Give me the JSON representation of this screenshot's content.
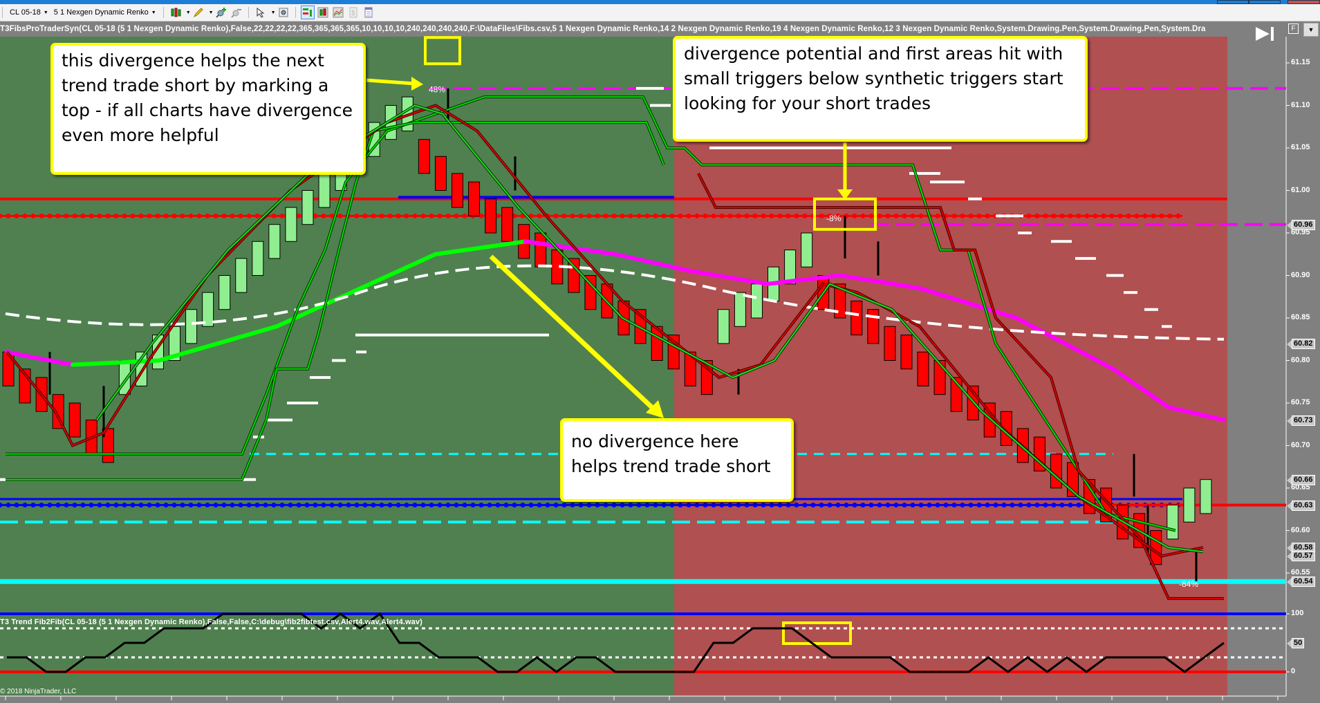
{
  "window": {
    "title_bar_color": "#1c7ed6"
  },
  "toolbar": {
    "instrument": "CL 05-18",
    "bar_type": "5 1 Nexgen Dynamic Renko",
    "icons": [
      "chart-style-icon",
      "drawing-tool-icon",
      "zoom-in-icon",
      "zoom-out-icon",
      "pointer-icon",
      "data-box-icon",
      "strategies-icon",
      "indicators-icon",
      "chart-trader-icon",
      "price-icon",
      "properties-icon"
    ]
  },
  "chart": {
    "colors": {
      "bull_bg": "#508050",
      "bear_bg": "#b05050",
      "empty_bg": "#808080",
      "callout_border": "#ffff00"
    },
    "main_indicator_label": "T3FibsProTraderSyn(CL 05-18 (5 1 Nexgen Dynamic Renko),False,22,22,22,22,365,365,365,365,10,10,10,10,240,240,240,240,F:\\DataFiles\\Fibs.csv,5 1 Nexgen Dynamic Renko,14 2 Nexgen Dynamic Renko,19 4 Nexgen Dynamic Renko,12 3 Nexgen Dynamic Renko,System.Drawing.Pen,System.Drawing.Pen,System.Dra",
    "lower_indicator_label": "T3 Trend Fib2Fib(CL 05-18 (5 1 Nexgen Dynamic Renko),False,False,C:\\debug\\fib2fibtest.csv,Alert4.wav,Alert4.wav)",
    "copyright": "© 2018 NinjaTrader, LLC",
    "f_button": "F",
    "price_axis": {
      "ticks": [
        "61.15",
        "61.10",
        "61.05",
        "61.00",
        "60.95",
        "60.90",
        "60.85",
        "60.80",
        "60.75",
        "60.70",
        "60.65",
        "60.60",
        "60.55"
      ],
      "tags": [
        "60.96",
        "60.82",
        "60.73",
        "60.66",
        "60.63",
        "60.58",
        "60.57",
        "60.54"
      ]
    },
    "lower_axis": {
      "ticks": [
        "100",
        "0"
      ],
      "tags": [
        "50"
      ]
    },
    "percent_labels": [
      "48%",
      "-8%",
      "-84%"
    ],
    "callouts": [
      {
        "text": "this divergence helps the next trend trade short by marking a top - if all charts have divergence even more helpful"
      },
      {
        "text": "divergence potential and first areas hit with small triggers below synthetic triggers start looking for your short trades"
      },
      {
        "text": "no divergence here helps trend trade short"
      }
    ]
  },
  "chart_data": {
    "type": "table",
    "title": "CL 05-18 5 1 Nexgen Dynamic Renko",
    "price_range": [
      60.52,
      61.17
    ],
    "renko_bars": [
      {
        "o": 60.81,
        "c": 60.77,
        "dir": "down"
      },
      {
        "o": 60.79,
        "c": 60.75,
        "dir": "down"
      },
      {
        "o": 60.78,
        "c": 60.74,
        "dir": "down"
      },
      {
        "o": 60.76,
        "c": 60.72,
        "dir": "down"
      },
      {
        "o": 60.75,
        "c": 60.71,
        "dir": "down"
      },
      {
        "o": 60.73,
        "c": 60.69,
        "dir": "down"
      },
      {
        "o": 60.72,
        "c": 60.68,
        "dir": "down"
      },
      {
        "o": 60.76,
        "c": 60.8,
        "dir": "up"
      },
      {
        "o": 60.77,
        "c": 60.81,
        "dir": "up"
      },
      {
        "o": 60.79,
        "c": 60.83,
        "dir": "up"
      },
      {
        "o": 60.8,
        "c": 60.84,
        "dir": "up"
      },
      {
        "o": 60.82,
        "c": 60.86,
        "dir": "up"
      },
      {
        "o": 60.84,
        "c": 60.88,
        "dir": "up"
      },
      {
        "o": 60.86,
        "c": 60.9,
        "dir": "up"
      },
      {
        "o": 60.88,
        "c": 60.92,
        "dir": "up"
      },
      {
        "o": 60.9,
        "c": 60.94,
        "dir": "up"
      },
      {
        "o": 60.92,
        "c": 60.96,
        "dir": "up"
      },
      {
        "o": 60.94,
        "c": 60.98,
        "dir": "up"
      },
      {
        "o": 60.96,
        "c": 61.0,
        "dir": "up"
      },
      {
        "o": 60.98,
        "c": 61.02,
        "dir": "up"
      },
      {
        "o": 61.0,
        "c": 61.04,
        "dir": "up"
      },
      {
        "o": 61.02,
        "c": 61.06,
        "dir": "up"
      },
      {
        "o": 61.04,
        "c": 61.08,
        "dir": "up"
      },
      {
        "o": 61.06,
        "c": 61.1,
        "dir": "up"
      },
      {
        "o": 61.07,
        "c": 61.11,
        "dir": "up"
      },
      {
        "o": 61.06,
        "c": 61.02,
        "dir": "down"
      },
      {
        "o": 61.04,
        "c": 61.0,
        "dir": "down"
      },
      {
        "o": 61.02,
        "c": 60.98,
        "dir": "down"
      },
      {
        "o": 61.01,
        "c": 60.97,
        "dir": "down"
      },
      {
        "o": 60.99,
        "c": 60.95,
        "dir": "down"
      },
      {
        "o": 60.98,
        "c": 60.94,
        "dir": "down"
      },
      {
        "o": 60.96,
        "c": 60.92,
        "dir": "down"
      },
      {
        "o": 60.95,
        "c": 60.91,
        "dir": "down"
      },
      {
        "o": 60.93,
        "c": 60.89,
        "dir": "down"
      },
      {
        "o": 60.92,
        "c": 60.88,
        "dir": "down"
      },
      {
        "o": 60.9,
        "c": 60.86,
        "dir": "down"
      },
      {
        "o": 60.89,
        "c": 60.85,
        "dir": "down"
      },
      {
        "o": 60.87,
        "c": 60.83,
        "dir": "down"
      },
      {
        "o": 60.86,
        "c": 60.82,
        "dir": "down"
      },
      {
        "o": 60.84,
        "c": 60.8,
        "dir": "down"
      },
      {
        "o": 60.83,
        "c": 60.79,
        "dir": "down"
      },
      {
        "o": 60.81,
        "c": 60.77,
        "dir": "down"
      },
      {
        "o": 60.8,
        "c": 60.76,
        "dir": "down"
      },
      {
        "o": 60.82,
        "c": 60.86,
        "dir": "up"
      },
      {
        "o": 60.84,
        "c": 60.88,
        "dir": "up"
      },
      {
        "o": 60.85,
        "c": 60.89,
        "dir": "up"
      },
      {
        "o": 60.87,
        "c": 60.91,
        "dir": "up"
      },
      {
        "o": 60.89,
        "c": 60.93,
        "dir": "up"
      },
      {
        "o": 60.91,
        "c": 60.95,
        "dir": "up"
      },
      {
        "o": 60.9,
        "c": 60.86,
        "dir": "down"
      },
      {
        "o": 60.89,
        "c": 60.85,
        "dir": "down"
      },
      {
        "o": 60.87,
        "c": 60.83,
        "dir": "down"
      },
      {
        "o": 60.86,
        "c": 60.82,
        "dir": "down"
      },
      {
        "o": 60.84,
        "c": 60.8,
        "dir": "down"
      },
      {
        "o": 60.83,
        "c": 60.79,
        "dir": "down"
      },
      {
        "o": 60.81,
        "c": 60.77,
        "dir": "down"
      },
      {
        "o": 60.8,
        "c": 60.76,
        "dir": "down"
      },
      {
        "o": 60.78,
        "c": 60.74,
        "dir": "down"
      },
      {
        "o": 60.77,
        "c": 60.73,
        "dir": "down"
      },
      {
        "o": 60.75,
        "c": 60.71,
        "dir": "down"
      },
      {
        "o": 60.74,
        "c": 60.7,
        "dir": "down"
      },
      {
        "o": 60.72,
        "c": 60.68,
        "dir": "down"
      },
      {
        "o": 60.71,
        "c": 60.67,
        "dir": "down"
      },
      {
        "o": 60.69,
        "c": 60.65,
        "dir": "down"
      },
      {
        "o": 60.68,
        "c": 60.64,
        "dir": "down"
      },
      {
        "o": 60.66,
        "c": 60.62,
        "dir": "down"
      },
      {
        "o": 60.65,
        "c": 60.61,
        "dir": "down"
      },
      {
        "o": 60.63,
        "c": 60.59,
        "dir": "down"
      },
      {
        "o": 60.62,
        "c": 60.58,
        "dir": "down"
      },
      {
        "o": 60.6,
        "c": 60.56,
        "dir": "down"
      },
      {
        "o": 60.59,
        "c": 60.63,
        "dir": "up"
      },
      {
        "o": 60.61,
        "c": 60.65,
        "dir": "up"
      },
      {
        "o": 60.62,
        "c": 60.66,
        "dir": "up"
      }
    ],
    "horizontal_levels": [
      {
        "price": 61.12,
        "color": "#ff00ff",
        "style": "dashed"
      },
      {
        "price": 60.99,
        "color": "#ff0000",
        "style": "solid"
      },
      {
        "price": 60.97,
        "color": "#ff0000",
        "style": "dotted"
      },
      {
        "price": 60.96,
        "color": "#ff00ff",
        "style": "dashed"
      },
      {
        "price": 60.63,
        "color": "#0000ff",
        "style": "dotted"
      },
      {
        "price": 60.63,
        "color": "#ff0000",
        "style": "solid"
      },
      {
        "price": 60.61,
        "color": "#00ffff",
        "style": "dashed"
      },
      {
        "price": 60.54,
        "color": "#00ffff",
        "style": "solid"
      }
    ],
    "oscillator": {
      "range": [
        0,
        100
      ],
      "levels": [
        100,
        75,
        25,
        0
      ],
      "values": [
        25,
        25,
        0,
        0,
        25,
        25,
        50,
        50,
        75,
        75,
        75,
        100,
        100,
        100,
        100,
        100,
        75,
        100,
        75,
        100,
        50,
        50,
        25,
        25,
        25,
        0,
        0,
        25,
        0,
        25,
        25,
        0,
        0,
        0,
        0,
        0,
        50,
        50,
        75,
        75,
        75,
        50,
        25,
        25,
        25,
        25,
        0,
        0,
        0,
        0,
        25,
        0,
        25,
        0,
        25,
        0,
        25,
        25,
        25,
        25,
        0,
        25,
        50
      ]
    }
  }
}
